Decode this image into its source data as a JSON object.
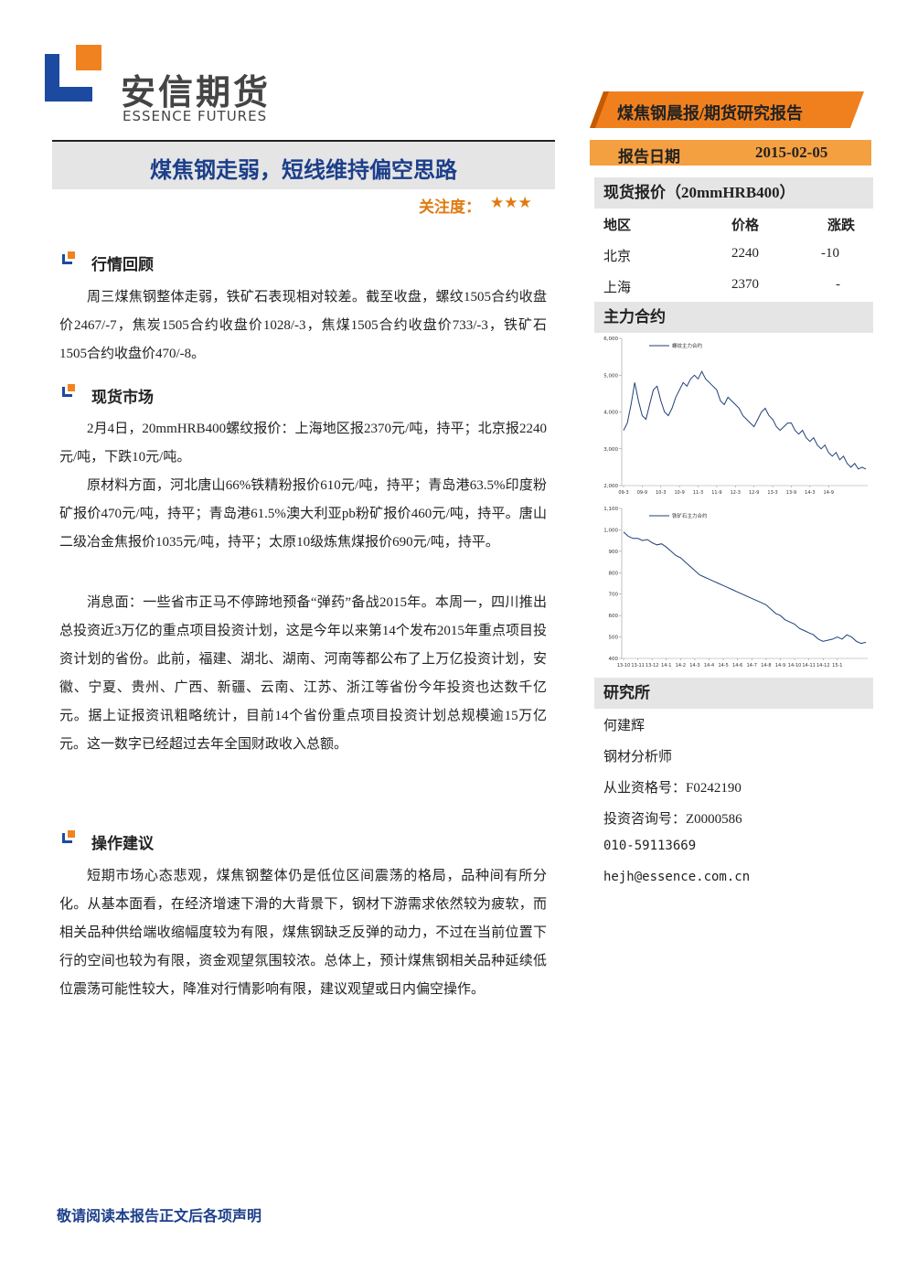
{
  "header": {
    "logo_cn": "安信期货",
    "logo_en": "ESSENCE FUTURES",
    "report_type": "煤焦钢晨报/期货研究报告",
    "date_label": "报告日期",
    "date": "2015-02-05"
  },
  "title": "煤焦钢走弱，短线维持偏空思路",
  "attention": {
    "label": "关注度：",
    "stars": "★★★"
  },
  "sections": [
    {
      "heading": "行情回顾",
      "paragraphs": [
        "周三煤焦钢整体走弱，铁矿石表现相对较差。截至收盘，螺纹1505合约收盘价2467/-7，焦炭1505合约收盘价1028/-3，焦煤1505合约收盘价733/-3，铁矿石1505合约收盘价470/-8。"
      ]
    },
    {
      "heading": "现货市场",
      "paragraphs": [
        "2月4日，20mmHRB400螺纹报价：上海地区报2370元/吨，持平；北京报2240元/吨，下跌10元/吨。",
        "原材料方面，河北唐山66%铁精粉报价610元/吨，持平；青岛港63.5%印度粉矿报价470元/吨，持平；青岛港61.5%澳大利亚pb粉矿报价460元/吨，持平。唐山二级冶金焦报价1035元/吨，持平；太原10级炼焦煤报价690元/吨，持平。",
        "消息面：一些省市正马不停蹄地预备“弹药”备战2015年。本周一，四川推出总投资近3万亿的重点项目投资计划，这是今年以来第14个发布2015年重点项目投资计划的省份。此前，福建、湖北、湖南、河南等都公布了上万亿投资计划，安徽、宁夏、贵州、广西、新疆、云南、江苏、浙江等省份今年投资也达数千亿元。据上证报资讯粗略统计，目前14个省份重点项目投资计划总规模逾15万亿元。这一数字已经超过去年全国财政收入总额。"
      ]
    },
    {
      "heading": "操作建议",
      "paragraphs": [
        "短期市场心态悲观，煤焦钢整体仍是低位区间震荡的格局，品种间有所分化。从基本面看，在经济增速下滑的大背景下，钢材下游需求依然较为疲软，而相关品种供给端收缩幅度较为有限，煤焦钢缺乏反弹的动力，不过在当前位置下行的空间也较为有限，资金观望氛围较浓。总体上，预计煤焦钢相关品种延续低位震荡可能性较大，降准对行情影响有限，建议观望或日内偏空操作。"
      ]
    }
  ],
  "spot": {
    "heading": "现货报价（20mmHRB400）",
    "columns": [
      "地区",
      "价格",
      "涨跌"
    ],
    "rows": [
      [
        "北京",
        2240,
        -10
      ],
      [
        "上海",
        2370,
        "-"
      ]
    ]
  },
  "contract_heading": "主力合约",
  "chart_data": [
    {
      "type": "line",
      "series": [
        {
          "name": "螺纹主力合约",
          "color": "#1f3f7a",
          "values": [
            3500,
            3700,
            4200,
            4800,
            4300,
            3900,
            3800,
            4200,
            4600,
            4700,
            4300,
            4000,
            3900,
            4100,
            4400,
            4600,
            4800,
            4700,
            4900,
            5000,
            4900,
            5100,
            4900,
            4800,
            4700,
            4600,
            4300,
            4200,
            4400,
            4300,
            4200,
            4100,
            3900,
            3800,
            3700,
            3600,
            3800,
            4000,
            4100,
            3900,
            3800,
            3600,
            3500,
            3600,
            3700,
            3700,
            3500,
            3400,
            3500,
            3300,
            3200,
            3300,
            3100,
            3000,
            3100,
            2900,
            2800,
            2900,
            2700,
            2800,
            2600,
            2500,
            2600,
            2450,
            2500,
            2450
          ]
        }
      ],
      "categories": [
        "09-3",
        null,
        null,
        null,
        null,
        "09-9",
        null,
        null,
        null,
        null,
        "10-3",
        null,
        null,
        null,
        null,
        "10-9",
        null,
        null,
        null,
        null,
        "11-3",
        null,
        null,
        null,
        null,
        "11-9",
        null,
        null,
        null,
        null,
        "12-3",
        null,
        null,
        null,
        null,
        "12-9",
        null,
        null,
        null,
        null,
        "13-3",
        null,
        null,
        null,
        null,
        "13-9",
        null,
        null,
        null,
        null,
        "14-3",
        null,
        null,
        null,
        null,
        "14-9",
        null,
        null,
        null,
        null,
        null,
        null,
        null,
        null,
        null,
        null
      ],
      "ylim": [
        2000,
        6000
      ],
      "yticks": [
        {
          "value": 2000,
          "label": "2,000"
        },
        {
          "value": 3000,
          "label": "3,000"
        },
        {
          "value": 4000,
          "label": "4,000"
        },
        {
          "value": 5000,
          "label": "5,000"
        },
        {
          "value": 6000,
          "label": "6,000"
        }
      ]
    },
    {
      "type": "line",
      "series": [
        {
          "name": "铁矿石主力合约",
          "color": "#1f3f7a",
          "values": [
            990,
            970,
            960,
            960,
            950,
            955,
            940,
            930,
            935,
            920,
            900,
            880,
            870,
            850,
            830,
            810,
            790,
            780,
            770,
            760,
            750,
            740,
            730,
            720,
            710,
            700,
            690,
            680,
            670,
            660,
            650,
            630,
            610,
            600,
            580,
            570,
            560,
            540,
            530,
            520,
            510,
            490,
            480,
            485,
            490,
            500,
            490,
            510,
            500,
            480,
            470,
            475
          ]
        }
      ],
      "categories": [
        "13-10",
        null,
        null,
        "13-11",
        null,
        null,
        "13-12",
        null,
        null,
        "14-1",
        null,
        null,
        "14-2",
        null,
        null,
        "14-3",
        null,
        null,
        "14-4",
        null,
        null,
        "14-5",
        null,
        null,
        "14-6",
        null,
        null,
        "14-7",
        null,
        null,
        "14-8",
        null,
        null,
        "14-9",
        null,
        null,
        "14-10",
        null,
        null,
        "14-11",
        null,
        null,
        "14-12",
        null,
        null,
        "15-1",
        null,
        null,
        null,
        null,
        null,
        null
      ],
      "ylim": [
        400,
        1100
      ],
      "yticks": [
        400,
        500,
        600,
        700,
        800,
        900,
        {
          "value": 1000,
          "label": "1,000"
        },
        {
          "value": 1100,
          "label": "1,100"
        }
      ]
    }
  ],
  "research": {
    "heading": "研究所",
    "lines": [
      "何建辉",
      "钢材分析师",
      "从业资格号：F0242190",
      "投资咨询号：Z0000586",
      "010-59113669",
      "hejh@essence.com.cn"
    ]
  },
  "footer": "敬请阅读本报告正文后各项声明"
}
